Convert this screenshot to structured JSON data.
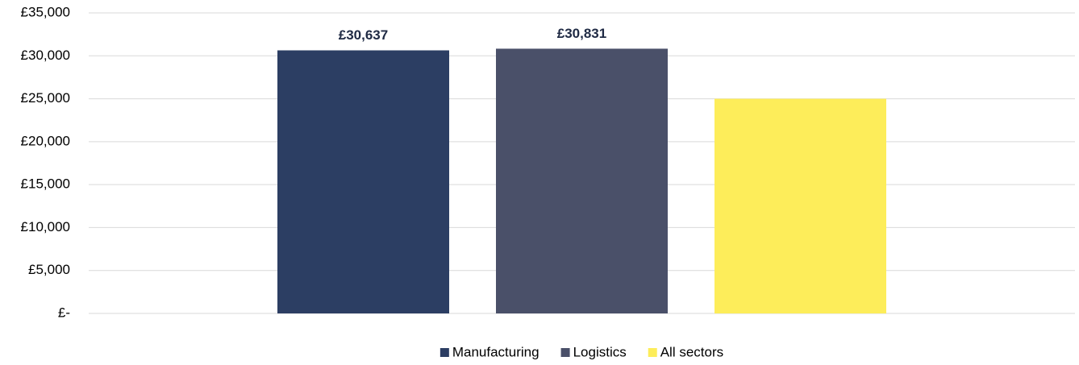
{
  "chart_data": {
    "type": "bar",
    "categories": [
      null
    ],
    "series": [
      {
        "name": "Manufacturing",
        "color": "#2c3e63",
        "values": [
          30637
        ],
        "value_labels": [
          "£30,637"
        ]
      },
      {
        "name": "Logistics",
        "color": "#4a5069",
        "values": [
          30831
        ],
        "value_labels": [
          "£30,831"
        ]
      },
      {
        "name": "All sectors",
        "color": "#fded5a",
        "values": [
          25000
        ]
      }
    ],
    "ylim": [
      0,
      35000
    ],
    "yticks": [
      {
        "value": 0,
        "label": "£-"
      },
      {
        "value": 5000,
        "label": "£5,000"
      },
      {
        "value": 10000,
        "label": "£10,000"
      },
      {
        "value": 15000,
        "label": "£15,000"
      },
      {
        "value": 20000,
        "label": "£20,000"
      },
      {
        "value": 25000,
        "label": "£25,000"
      },
      {
        "value": 30000,
        "label": "£30,000"
      },
      {
        "value": 35000,
        "label": "£35,000"
      }
    ],
    "grid": true,
    "legend": "bottom"
  }
}
